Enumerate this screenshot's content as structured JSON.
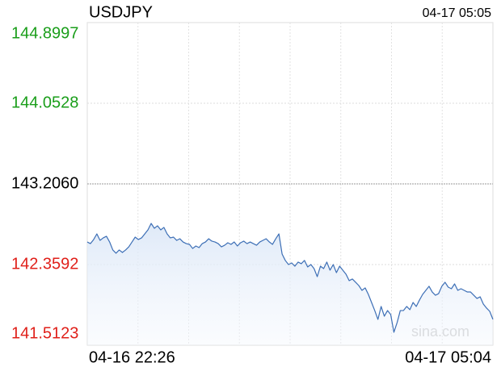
{
  "chart_data": {
    "type": "line",
    "title": "USDJPY",
    "timestamp": "04-17 05:05",
    "watermark": "sina.com",
    "xlim": [
      0,
      127
    ],
    "xticks": [
      {
        "value": 0,
        "label": "04-16 22:26"
      },
      {
        "value": 127,
        "label": "04-17 05:04"
      }
    ],
    "ylim": [
      141.5123,
      144.8997
    ],
    "yticks": [
      141.5123,
      142.3592,
      {
        "value": 143.206,
        "label": "143.2060"
      },
      144.0528,
      144.8997
    ],
    "grid": true,
    "color": "#3d6fb6",
    "up_color": "#1a9e1a",
    "down_color": "#e0201a",
    "values": [
      142.596,
      142.579,
      142.622,
      142.681,
      142.613,
      142.639,
      142.656,
      142.596,
      142.512,
      142.478,
      142.512,
      142.486,
      142.512,
      142.545,
      142.596,
      142.647,
      142.622,
      142.639,
      142.681,
      142.723,
      142.791,
      142.74,
      142.766,
      142.723,
      142.749,
      142.681,
      142.639,
      142.647,
      142.613,
      142.63,
      142.596,
      142.579,
      142.571,
      142.528,
      142.554,
      142.537,
      142.579,
      142.596,
      142.63,
      142.605,
      142.596,
      142.579,
      142.545,
      142.562,
      142.588,
      142.571,
      142.596,
      142.554,
      142.588,
      142.605,
      142.579,
      142.596,
      142.579,
      142.562,
      142.596,
      142.613,
      142.63,
      142.596,
      142.571,
      142.63,
      142.681,
      142.469,
      142.402,
      142.359,
      142.376,
      142.342,
      142.385,
      142.368,
      142.402,
      142.334,
      142.359,
      142.317,
      142.232,
      142.342,
      142.317,
      142.385,
      142.3,
      142.359,
      142.274,
      142.342,
      142.3,
      142.258,
      142.19,
      142.207,
      142.173,
      142.139,
      142.088,
      142.114,
      142.046,
      141.961,
      141.876,
      141.783,
      141.919,
      141.817,
      141.876,
      141.834,
      141.648,
      141.749,
      141.876,
      141.876,
      141.919,
      141.885,
      141.961,
      141.919,
      141.986,
      142.046,
      142.088,
      142.131,
      142.071,
      142.037,
      142.054,
      142.131,
      142.173,
      142.122,
      142.105,
      142.156,
      142.088,
      142.105,
      142.088,
      142.071,
      142.071,
      142.037,
      142.003,
      142.02,
      141.944,
      141.902,
      141.868,
      141.783
    ]
  }
}
